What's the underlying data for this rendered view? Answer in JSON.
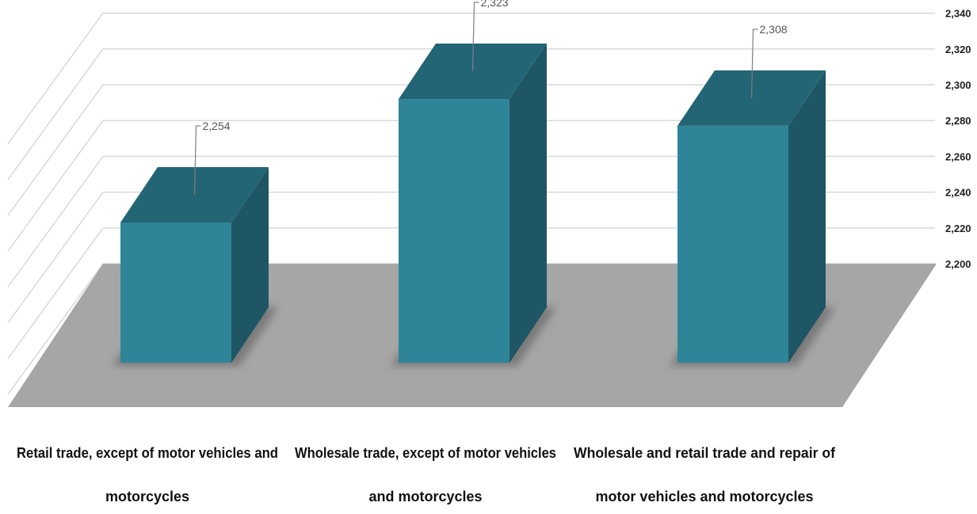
{
  "chart_data": {
    "type": "bar",
    "style": "3d-column",
    "title": "",
    "xlabel": "",
    "ylabel": "",
    "categories": [
      [
        "Retail trade, except of motor vehicles and",
        "motorcycles"
      ],
      [
        "Wholesale trade, except of motor vehicles",
        "and motorcycles"
      ],
      [
        "Wholesale and retail trade and repair of",
        "motor vehicles and motorcycles"
      ]
    ],
    "values": [
      2254,
      2323,
      2308
    ],
    "data_labels": [
      "2,254",
      "2,323",
      "2,308"
    ],
    "ylim": [
      2200,
      2340
    ],
    "yticks": [
      2200,
      2220,
      2240,
      2260,
      2280,
      2300,
      2320,
      2340
    ],
    "ytick_labels": [
      "2,200",
      "2,220",
      "2,240",
      "2,260",
      "2,280",
      "2,300",
      "2,320",
      "2,340"
    ],
    "y_axis_position": "right",
    "grid": true,
    "legend": false,
    "colors": {
      "bar_front": "#2E8598",
      "bar_top": "#236574",
      "bar_side": "#1E5665",
      "floor": "#A6A6A6",
      "gridline": "#D9D9D9",
      "leader_line": "#7F7F7F"
    }
  }
}
